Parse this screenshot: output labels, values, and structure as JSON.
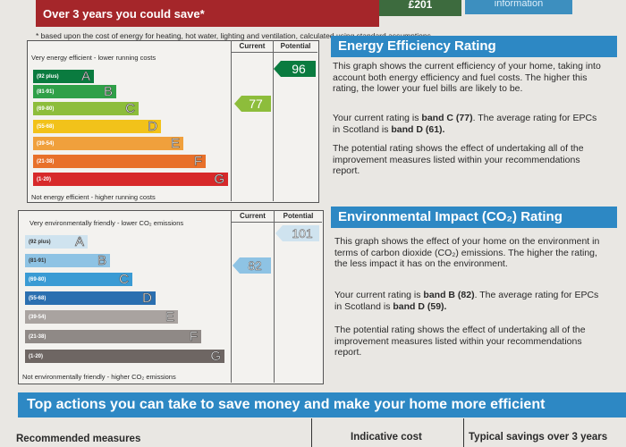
{
  "top": {
    "banner": "Over 3 years you could save*",
    "amount": "£201",
    "info": "information"
  },
  "note": "* based upon the cost of energy for heating, hot water, lighting and ventilation, calculated using standard assumptions",
  "energy": {
    "col_current": "Current",
    "col_potential": "Potential",
    "top_label": "Very energy efficient - lower running costs",
    "bottom_label": "Not energy efficient - higher running costs",
    "bands": [
      {
        "range": "(92 plus)",
        "letter": "A",
        "color": "#0a7b3f"
      },
      {
        "range": "(81-91)",
        "letter": "B",
        "color": "#2fa048"
      },
      {
        "range": "(69-80)",
        "letter": "C",
        "color": "#8dbd3b"
      },
      {
        "range": "(55-68)",
        "letter": "D",
        "color": "#f2c21a"
      },
      {
        "range": "(39-54)",
        "letter": "E",
        "color": "#f0a03c"
      },
      {
        "range": "(21-38)",
        "letter": "F",
        "color": "#e8702a"
      },
      {
        "range": "(1-20)",
        "letter": "G",
        "color": "#d7292a"
      }
    ],
    "current": "77",
    "potential": "96",
    "current_color": "#8dbd3b",
    "potential_color": "#0a7b3f",
    "heading": "Energy Efficiency Rating",
    "p1": "This graph shows the current efficiency of your home, taking into account both energy efficiency and fuel costs. The higher this rating, the lower your fuel bills are likely to be.",
    "p2_pre": "Your current rating is ",
    "p2_b1": "band C (77)",
    "p2_mid": ". The average rating for EPCs in Scotland is ",
    "p2_b2": "band D (61).",
    "p3": "The potential rating shows the effect of undertaking all of the improvement measures listed within your recommendations report."
  },
  "env": {
    "col_current": "Current",
    "col_potential": "Potential",
    "top_label": "Very environmentally friendly - lower CO₂ emissions",
    "bottom_label": "Not environmentally friendly - higher CO₂ emissions",
    "bands": [
      {
        "range": "(92 plus)",
        "letter": "A",
        "color": "#cfe3ef"
      },
      {
        "range": "(81-91)",
        "letter": "B",
        "color": "#8ec3e4"
      },
      {
        "range": "(69-80)",
        "letter": "C",
        "color": "#3a9bd4"
      },
      {
        "range": "(55-68)",
        "letter": "D",
        "color": "#2b6fb0"
      },
      {
        "range": "(39-54)",
        "letter": "E",
        "color": "#a9a3a0"
      },
      {
        "range": "(21-38)",
        "letter": "F",
        "color": "#8f8986"
      },
      {
        "range": "(1-20)",
        "letter": "G",
        "color": "#6e6663"
      }
    ],
    "current": "82",
    "potential": "101",
    "current_color": "#8ec3e4",
    "potential_color": "#cfe3ef",
    "heading": "Environmental Impact (CO₂) Rating",
    "p1": "This graph shows the effect of your home on the environment in terms of carbon dioxide (CO₂) emissions. The higher the rating, the less impact it has on the environment.",
    "p2_pre": "Your current rating is ",
    "p2_b1": "band B (82)",
    "p2_mid": ". The average rating for EPCs in Scotland is ",
    "p2_b2": "band D (59).",
    "p3": "The potential rating shows the effect of undertaking all of the improvement measures listed within your recommendations report."
  },
  "bottom": {
    "banner": "Top actions you can take to save money and make your home more efficient",
    "col1": "Recommended measures",
    "col2": "Indicative cost",
    "col3": "Typical savings over 3 years"
  }
}
